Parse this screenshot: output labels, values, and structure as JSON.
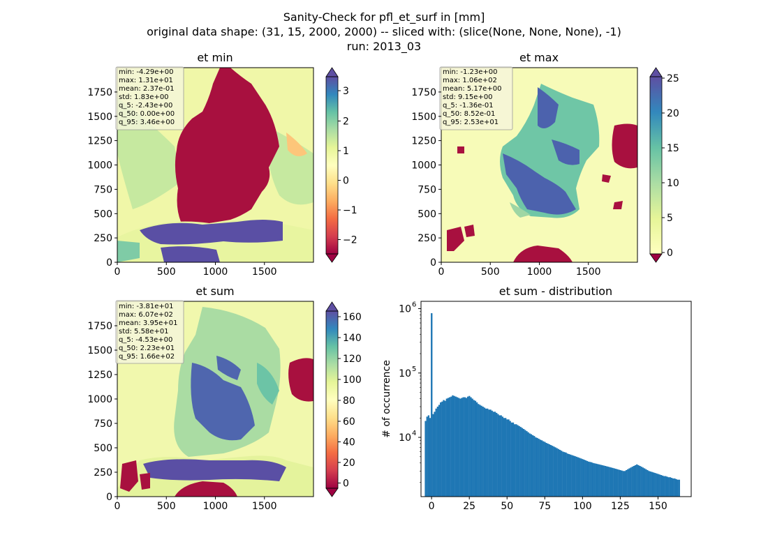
{
  "suptitle": [
    "Sanity-Check for pfl_et_surf in [mm]",
    "original data shape: (31, 15, 2000, 2000) -- sliced with: (slice(None, None, None), -1)",
    "run: 2013_03"
  ],
  "chart_data": [
    {
      "type": "heatmap",
      "title": "et min",
      "x_ticks": [
        0,
        500,
        1000,
        1500
      ],
      "y_ticks": [
        0,
        250,
        500,
        750,
        1000,
        1250,
        1500,
        1750
      ],
      "xlim": [
        0,
        2000
      ],
      "ylim": [
        0,
        2000
      ],
      "colormap": "Spectral",
      "colorbar": {
        "ticks": [
          -2,
          -1,
          0,
          1,
          2,
          3
        ],
        "tick_labels": [
          "−2",
          "−1",
          "0",
          "1",
          "2",
          "3"
        ],
        "range": [
          -2.6,
          3.6
        ],
        "extend": "both"
      },
      "stats": [
        "min: -4.29e+00",
        "max: 1.31e+01",
        "mean: 2.37e-01",
        "std: 1.83e+00",
        "q_5: -2.43e+00",
        "q_50: 0.00e+00",
        "q_95: 3.46e+00"
      ]
    },
    {
      "type": "heatmap",
      "title": "et max",
      "x_ticks": [
        0,
        500,
        1000,
        1500
      ],
      "y_ticks": [
        0,
        250,
        500,
        750,
        1000,
        1250,
        1500,
        1750
      ],
      "xlim": [
        0,
        2000
      ],
      "ylim": [
        0,
        2000
      ],
      "colormap": "Spectral",
      "colorbar": {
        "ticks": [
          0,
          5,
          10,
          15,
          20,
          25
        ],
        "tick_labels": [
          "0",
          "5",
          "10",
          "15",
          "20",
          "25"
        ],
        "range": [
          0,
          25
        ],
        "extend": "both"
      },
      "stats": [
        "min: -1.23e+00",
        "max: 1.06e+02",
        "mean: 5.17e+00",
        "std: 9.15e+00",
        "q_5: -1.36e-01",
        "q_50: 8.52e-01",
        "q_95: 2.53e+01"
      ]
    },
    {
      "type": "heatmap",
      "title": "et sum",
      "x_ticks": [
        0,
        500,
        1000,
        1500
      ],
      "y_ticks": [
        0,
        250,
        500,
        750,
        1000,
        1250,
        1500,
        1750
      ],
      "xlim": [
        0,
        2000
      ],
      "ylim": [
        0,
        2000
      ],
      "colormap": "Spectral",
      "colorbar": {
        "ticks": [
          0,
          20,
          40,
          60,
          80,
          100,
          120,
          140,
          160
        ],
        "tick_labels": [
          "0",
          "20",
          "40",
          "60",
          "80",
          "100",
          "120",
          "140",
          "160"
        ],
        "range": [
          -6,
          170
        ],
        "extend": "both"
      },
      "stats": [
        "min: -3.81e+01",
        "max: 6.07e+02",
        "mean: 3.95e+01",
        "std: 5.58e+01",
        "q_5: -4.53e+00",
        "q_50: 2.23e+01",
        "q_95: 1.66e+02"
      ]
    },
    {
      "type": "bar",
      "title": "et sum - distribution",
      "ylabel": "# of occurrence",
      "xlabel": "",
      "log_y": true,
      "xlim": [
        -7,
        172
      ],
      "ylim": [
        1200,
        1300000
      ],
      "x_ticks": [
        0,
        25,
        50,
        75,
        100,
        125,
        150
      ],
      "y_ticks": [
        10000,
        100000,
        1000000
      ],
      "y_tick_labels": [
        [
          "10",
          "4"
        ],
        [
          "10",
          "5"
        ],
        [
          "10",
          "6"
        ]
      ],
      "bar_color": "#1f77b4",
      "bin_start": -4.5,
      "bin_width": 1,
      "series": [
        {
          "values": [
            18000,
            21000,
            22000,
            20000,
            850000,
            23000,
            25000,
            28000,
            30000,
            32000,
            35000,
            36000,
            38000,
            37000,
            40000,
            41000,
            42000,
            43000,
            45000,
            44000,
            43000,
            42000,
            41000,
            40000,
            41000,
            42000,
            42000,
            41000,
            43000,
            44000,
            42000,
            40000,
            38000,
            37000,
            35000,
            33000,
            32000,
            31000,
            30000,
            29000,
            28000,
            28000,
            27000,
            27000,
            26000,
            25000,
            25000,
            24000,
            23000,
            22000,
            22000,
            21000,
            20000,
            20000,
            19000,
            19000,
            18000,
            17000,
            17000,
            16000,
            16000,
            15500,
            15000,
            14500,
            14000,
            13500,
            13000,
            12500,
            12000,
            11500,
            11200,
            10800,
            10500,
            10000,
            9800,
            9500,
            9200,
            9000,
            8700,
            8500,
            8200,
            8000,
            7800,
            7600,
            7400,
            7200,
            7000,
            6800,
            6600,
            6400,
            6200,
            6000,
            5900,
            5800,
            5600,
            5500,
            5400,
            5300,
            5200,
            5100,
            5000,
            4900,
            4800,
            4700,
            4600,
            4500,
            4400,
            4300,
            4200,
            4150,
            4100,
            4000,
            3950,
            3900,
            3850,
            3800,
            3750,
            3700,
            3650,
            3600,
            3550,
            3500,
            3450,
            3400,
            3350,
            3300,
            3250,
            3200,
            3150,
            3100,
            3050,
            3000,
            3000,
            3100,
            3200,
            3300,
            3400,
            3500,
            3600,
            3700,
            3800,
            3700,
            3600,
            3500,
            3400,
            3300,
            3200,
            3100,
            3000,
            2950,
            2900,
            2850,
            2800,
            2750,
            2700,
            2650,
            2600,
            2550,
            2500,
            2500,
            2450,
            2400,
            2400,
            2350,
            2300,
            2300,
            2250,
            2200,
            2200
          ]
        }
      ]
    }
  ]
}
